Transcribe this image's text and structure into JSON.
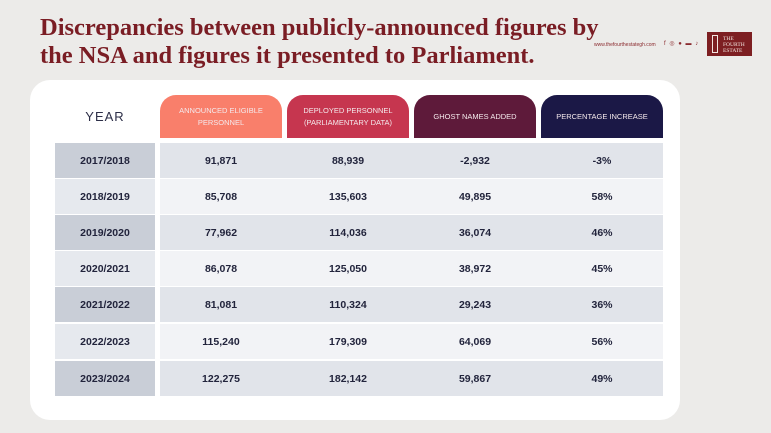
{
  "title": "Discrepancies between publicly-announced figures by the NSA and figures it presented to Parliament.",
  "website": "www.thefourthestategh.com",
  "social_icons": [
    "facebook-icon",
    "instagram-icon",
    "twitter-icon",
    "youtube-icon",
    "tiktok-icon"
  ],
  "logo_text": "THE FOURTH ESTATE",
  "colors": {
    "announced": "#f97f6b",
    "deployed": "#c6364f",
    "ghost": "#5e1a3a",
    "percent": "#1b1846",
    "title": "#7a1d24"
  },
  "chart_data": {
    "type": "table",
    "columns": [
      "YEAR",
      "ANNOUNCED ELIGIBLE PERSONNEL",
      "DEPLOYED PERSONNEL (PARLIAMENTARY DATA)",
      "GHOST NAMES ADDED",
      "PERCENTAGE INCREASE"
    ],
    "rows": [
      [
        "2017/2018",
        "91,871",
        "88,939",
        "-2,932",
        "-3%"
      ],
      [
        "2018/2019",
        "85,708",
        "135,603",
        "49,895",
        "58%"
      ],
      [
        "2019/2020",
        "77,962",
        "114,036",
        "36,074",
        "46%"
      ],
      [
        "2020/2021",
        "86,078",
        "125,050",
        "38,972",
        "45%"
      ],
      [
        "2021/2022",
        "81,081",
        "110,324",
        "29,243",
        "36%"
      ],
      [
        "2022/2023",
        "115,240",
        "179,309",
        "64,069",
        "56%"
      ],
      [
        "2023/2024",
        "122,275",
        "182,142",
        "59,867",
        "49%"
      ]
    ]
  }
}
